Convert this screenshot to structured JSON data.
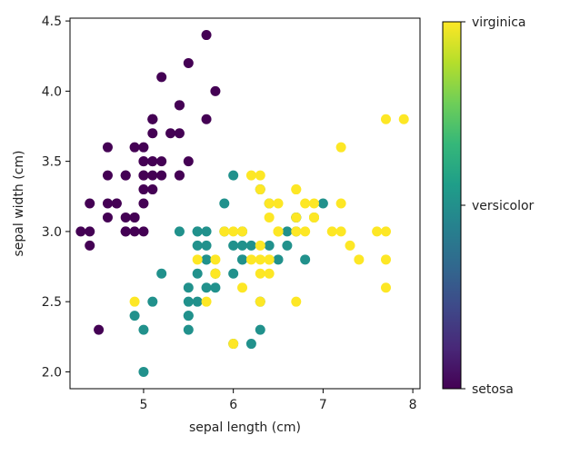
{
  "chart_data": {
    "type": "scatter",
    "title": "",
    "xlabel": "sepal length (cm)",
    "ylabel": "sepal width (cm)",
    "xlim": [
      4.18,
      8.08
    ],
    "ylim": [
      1.88,
      4.52
    ],
    "xticks": [
      5,
      6,
      7,
      8
    ],
    "yticks": [
      2.0,
      2.5,
      3.0,
      3.5,
      4.0,
      4.5
    ],
    "xtick_labels": [
      "5",
      "6",
      "7",
      "8"
    ],
    "ytick_labels": [
      "2.0",
      "2.5",
      "3.0",
      "3.5",
      "4.0",
      "4.5"
    ],
    "grid": false,
    "colormap": "viridis",
    "colorbar": {
      "ticks": [
        "setosa",
        "versicolor",
        "virginica"
      ],
      "colors": [
        "#440154",
        "#21918c",
        "#fde725"
      ]
    },
    "series": [
      {
        "name": "setosa",
        "color": "#440154",
        "x": [
          5.1,
          4.9,
          4.7,
          4.6,
          5.0,
          5.4,
          4.6,
          5.0,
          4.4,
          4.9,
          5.4,
          4.8,
          4.8,
          4.3,
          5.8,
          5.7,
          5.4,
          5.1,
          5.7,
          5.1,
          5.4,
          5.1,
          4.6,
          5.1,
          4.8,
          5.0,
          5.0,
          5.2,
          5.2,
          4.7,
          4.8,
          5.4,
          5.2,
          5.5,
          4.9,
          5.0,
          5.5,
          4.9,
          4.4,
          5.1,
          5.0,
          4.5,
          4.4,
          5.0,
          5.1,
          4.8,
          5.1,
          4.6,
          5.3,
          5.0
        ],
        "y": [
          3.5,
          3.0,
          3.2,
          3.1,
          3.6,
          3.9,
          3.4,
          3.4,
          2.9,
          3.1,
          3.7,
          3.4,
          3.0,
          3.0,
          4.0,
          4.4,
          3.9,
          3.5,
          3.8,
          3.8,
          3.4,
          3.7,
          3.6,
          3.3,
          3.4,
          3.0,
          3.4,
          3.5,
          3.4,
          3.2,
          3.1,
          3.4,
          4.1,
          4.2,
          3.1,
          3.2,
          3.5,
          3.6,
          3.0,
          3.4,
          3.5,
          2.3,
          3.2,
          3.5,
          3.8,
          3.0,
          3.8,
          3.2,
          3.7,
          3.3
        ]
      },
      {
        "name": "versicolor",
        "color": "#21918c",
        "x": [
          7.0,
          6.4,
          6.9,
          5.5,
          6.5,
          5.7,
          6.3,
          4.9,
          6.6,
          5.2,
          5.0,
          5.9,
          6.0,
          6.1,
          5.6,
          6.7,
          5.6,
          5.8,
          6.2,
          5.6,
          5.9,
          6.1,
          6.3,
          6.1,
          6.4,
          6.6,
          6.8,
          6.7,
          6.0,
          5.7,
          5.5,
          5.5,
          5.8,
          6.0,
          5.4,
          6.0,
          6.7,
          6.3,
          5.6,
          5.5,
          5.5,
          6.1,
          5.8,
          5.0,
          5.6,
          5.7,
          5.7,
          6.2,
          5.1,
          5.7
        ],
        "y": [
          3.2,
          3.2,
          3.1,
          2.3,
          2.8,
          2.8,
          3.3,
          2.4,
          2.9,
          2.7,
          2.0,
          3.0,
          2.2,
          2.9,
          2.9,
          3.1,
          3.0,
          2.7,
          2.2,
          2.5,
          3.2,
          2.8,
          2.5,
          2.8,
          2.9,
          3.0,
          2.8,
          3.0,
          2.9,
          2.6,
          2.4,
          2.4,
          2.7,
          2.7,
          3.0,
          3.4,
          3.1,
          2.3,
          3.0,
          2.5,
          2.6,
          3.0,
          2.6,
          2.3,
          2.7,
          3.0,
          2.9,
          2.9,
          2.5,
          2.8
        ]
      },
      {
        "name": "virginica",
        "color": "#fde725",
        "x": [
          6.3,
          5.8,
          7.1,
          6.3,
          6.5,
          7.6,
          4.9,
          7.3,
          6.7,
          7.2,
          6.5,
          6.4,
          6.8,
          5.7,
          5.8,
          6.4,
          6.5,
          7.7,
          7.7,
          6.0,
          6.9,
          5.6,
          7.7,
          6.3,
          6.7,
          7.2,
          6.2,
          6.1,
          6.4,
          7.2,
          7.4,
          7.9,
          6.4,
          6.3,
          6.1,
          7.7,
          6.3,
          6.4,
          6.0,
          6.9,
          6.7,
          6.9,
          5.8,
          6.8,
          6.7,
          6.7,
          6.3,
          6.5,
          6.2,
          5.9
        ],
        "y": [
          3.3,
          2.7,
          3.0,
          2.9,
          3.0,
          3.0,
          2.5,
          2.9,
          2.5,
          3.6,
          3.2,
          2.7,
          3.0,
          2.5,
          2.8,
          3.2,
          3.0,
          3.8,
          2.6,
          2.2,
          3.2,
          2.8,
          2.8,
          2.7,
          3.3,
          3.2,
          2.8,
          3.0,
          2.8,
          3.0,
          2.8,
          3.8,
          2.8,
          2.8,
          2.6,
          3.0,
          3.4,
          3.1,
          3.0,
          3.1,
          3.1,
          3.1,
          2.7,
          3.2,
          3.3,
          3.0,
          2.5,
          3.0,
          3.4,
          3.0
        ]
      }
    ]
  }
}
